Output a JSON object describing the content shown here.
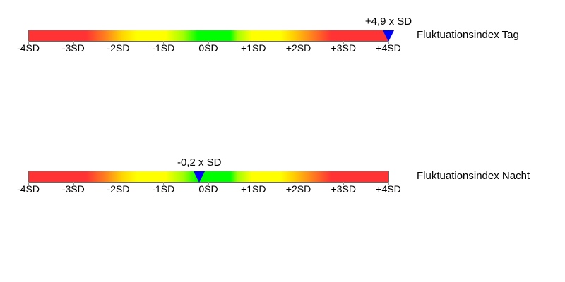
{
  "tick_labels": [
    "-4SD",
    "-3SD",
    "-2SD",
    "-1SD",
    "0SD",
    "+1SD",
    "+2SD",
    "+3SD",
    "+4SD"
  ],
  "scale_min": -4,
  "scale_max": 4,
  "marker_color": "#0000ff",
  "gauges": [
    {
      "name": "Fluktuationsindex Tag",
      "value_label": "+4,9 x SD",
      "value": 4.9
    },
    {
      "name": "Fluktuationsindex Nacht",
      "value_label": "-0,2 x SD",
      "value": -0.2
    }
  ]
}
